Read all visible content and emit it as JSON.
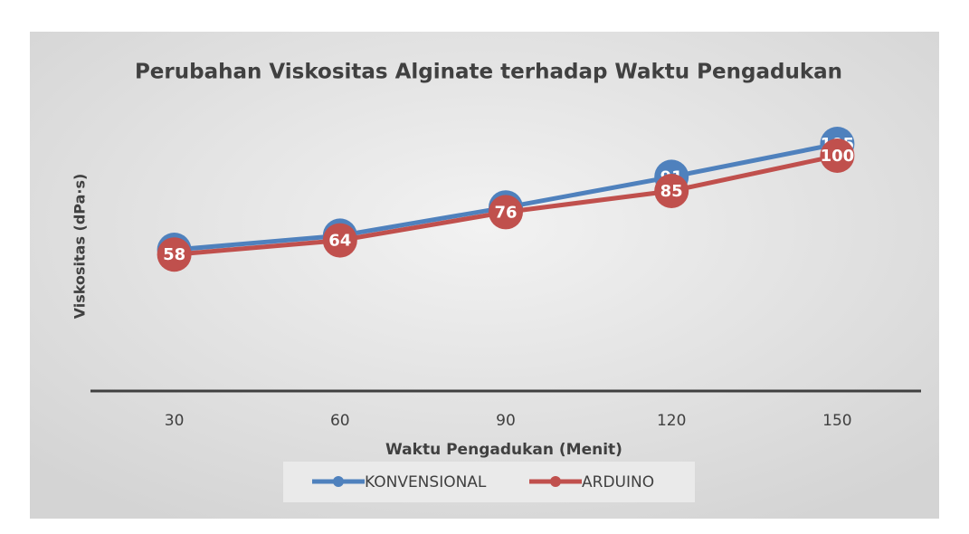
{
  "chart_data": {
    "type": "line",
    "title": "Perubahan Viskositas Alginate terhadap Waktu Pengadukan",
    "x_label": "Waktu Pengadukan (Menit)",
    "y_label": "Viskositas (dPa·s)",
    "categories": [
      "30",
      "60",
      "90",
      "120",
      "150"
    ],
    "series": [
      {
        "name": "KONVENSIONAL",
        "color": "#4f81bd",
        "values": [
          60,
          66,
          78,
          91,
          105
        ]
      },
      {
        "name": "ARDUINO",
        "color": "#c0504d",
        "values": [
          58,
          64,
          76,
          85,
          100
        ]
      }
    ],
    "ylim": [
      0,
      120
    ],
    "legend": "bottom"
  }
}
